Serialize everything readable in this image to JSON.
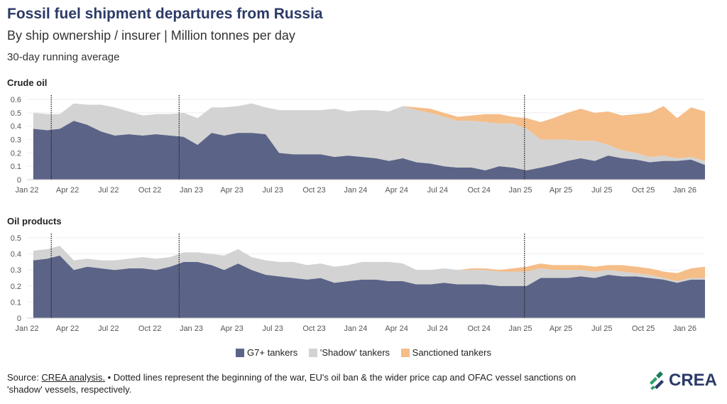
{
  "header": {
    "title": "Fossil fuel shipment departures from Russia",
    "subtitle": "By ship ownership / insurer | Million tonnes per day",
    "note": "30-day running average"
  },
  "colors": {
    "g7": "#5b6487",
    "shadow": "#d3d3d3",
    "sanctioned": "#f5bd88",
    "event_line": "#222222"
  },
  "legend": {
    "g7": "G7+ tankers",
    "shadow": "'Shadow' tankers",
    "sanctioned": "Sanctioned tankers"
  },
  "footer": {
    "source_label": "Source: ",
    "source_link": "CREA analysis.",
    "text": " • Dotted lines represent the beginning of the war, EU's oil ban & the wider price cap and OFAC vessel sanctions on 'shadow' vessels, respectively."
  },
  "logo": {
    "text": "CREA"
  },
  "chart_data": [
    {
      "type": "area",
      "stacked": true,
      "title": "Crude oil",
      "x_ticks": [
        "Jan 22",
        "Apr 22",
        "Jul 22",
        "Oct 22",
        "Jan 23",
        "Apr 23",
        "Jul 23",
        "Oct 23",
        "Jan 24",
        "Apr 24",
        "Jul 24",
        "Oct 24",
        "Jan 25",
        "Apr 25",
        "Jul 25",
        "Oct 25",
        "Jan 26"
      ],
      "y_ticks": [
        "0",
        "0.1",
        "0.2",
        "0.3",
        "0.4",
        "0.5",
        "0.6"
      ],
      "ylim": [
        0,
        0.6
      ],
      "x": [
        "2022-01",
        "2022-02",
        "2022-03",
        "2022-04",
        "2022-05",
        "2022-06",
        "2022-07",
        "2022-08",
        "2022-09",
        "2022-10",
        "2022-11",
        "2022-12",
        "2023-01",
        "2023-02",
        "2023-03",
        "2023-04",
        "2023-05",
        "2023-06",
        "2023-07",
        "2023-08",
        "2023-09",
        "2023-10",
        "2023-11",
        "2023-12",
        "2024-01",
        "2024-02",
        "2024-03",
        "2024-04",
        "2024-05",
        "2024-06",
        "2024-07",
        "2024-08",
        "2024-09",
        "2024-10",
        "2024-11",
        "2024-12",
        "2025-01",
        "2025-02",
        "2025-03",
        "2025-04",
        "2025-05",
        "2025-06",
        "2025-07",
        "2025-08",
        "2025-09",
        "2025-10",
        "2025-11",
        "2025-12",
        "2026-01",
        "2026-02"
      ],
      "series": [
        {
          "name": "G7+ tankers",
          "values": [
            0.38,
            0.37,
            0.38,
            0.44,
            0.41,
            0.36,
            0.33,
            0.34,
            0.33,
            0.34,
            0.33,
            0.32,
            0.26,
            0.35,
            0.33,
            0.35,
            0.35,
            0.34,
            0.2,
            0.19,
            0.19,
            0.19,
            0.17,
            0.18,
            0.17,
            0.16,
            0.14,
            0.16,
            0.13,
            0.12,
            0.1,
            0.09,
            0.09,
            0.07,
            0.1,
            0.09,
            0.07,
            0.09,
            0.11,
            0.14,
            0.16,
            0.14,
            0.18,
            0.16,
            0.15,
            0.13,
            0.14,
            0.14,
            0.15,
            0.11
          ]
        },
        {
          "name": "'Shadow' tankers",
          "values": [
            0.12,
            0.12,
            0.11,
            0.13,
            0.15,
            0.2,
            0.21,
            0.17,
            0.15,
            0.15,
            0.16,
            0.18,
            0.2,
            0.19,
            0.21,
            0.2,
            0.22,
            0.2,
            0.32,
            0.33,
            0.33,
            0.33,
            0.36,
            0.33,
            0.35,
            0.36,
            0.37,
            0.39,
            0.39,
            0.38,
            0.37,
            0.35,
            0.35,
            0.36,
            0.32,
            0.33,
            0.31,
            0.21,
            0.19,
            0.16,
            0.13,
            0.15,
            0.08,
            0.06,
            0.05,
            0.04,
            0.04,
            0.02,
            0.02,
            0.03
          ]
        },
        {
          "name": "Sanctioned tankers",
          "values": [
            0,
            0,
            0,
            0,
            0,
            0,
            0,
            0,
            0,
            0,
            0,
            0,
            0,
            0,
            0,
            0,
            0,
            0,
            0,
            0,
            0,
            0,
            0,
            0,
            0,
            0,
            0,
            0,
            0.02,
            0.03,
            0.03,
            0.03,
            0.04,
            0.06,
            0.07,
            0.05,
            0.08,
            0.13,
            0.16,
            0.2,
            0.24,
            0.21,
            0.25,
            0.26,
            0.29,
            0.33,
            0.37,
            0.3,
            0.37,
            0.37
          ]
        }
      ],
      "event_lines": [
        "2022-02-24",
        "2022-12-05",
        "2025-01-10"
      ]
    },
    {
      "type": "area",
      "stacked": true,
      "title": "Oil products",
      "x_ticks": [
        "Jan 22",
        "Apr 22",
        "Jul 22",
        "Oct 22",
        "Jan 23",
        "Apr 23",
        "Jul 23",
        "Oct 23",
        "Jan 24",
        "Apr 24",
        "Jul 24",
        "Oct 24",
        "Jan 25",
        "Apr 25",
        "Jul 25",
        "Oct 25",
        "Jan 26"
      ],
      "y_ticks": [
        "0",
        "0.1",
        "0.2",
        "0.3",
        "0.4",
        "0.5"
      ],
      "ylim": [
        0,
        0.5
      ],
      "x": [
        "2022-01",
        "2022-02",
        "2022-03",
        "2022-04",
        "2022-05",
        "2022-06",
        "2022-07",
        "2022-08",
        "2022-09",
        "2022-10",
        "2022-11",
        "2022-12",
        "2023-01",
        "2023-02",
        "2023-03",
        "2023-04",
        "2023-05",
        "2023-06",
        "2023-07",
        "2023-08",
        "2023-09",
        "2023-10",
        "2023-11",
        "2023-12",
        "2024-01",
        "2024-02",
        "2024-03",
        "2024-04",
        "2024-05",
        "2024-06",
        "2024-07",
        "2024-08",
        "2024-09",
        "2024-10",
        "2024-11",
        "2024-12",
        "2025-01",
        "2025-02",
        "2025-03",
        "2025-04",
        "2025-05",
        "2025-06",
        "2025-07",
        "2025-08",
        "2025-09",
        "2025-10",
        "2025-11",
        "2025-12",
        "2026-01",
        "2026-02"
      ],
      "series": [
        {
          "name": "G7+ tankers",
          "values": [
            0.36,
            0.37,
            0.39,
            0.3,
            0.32,
            0.31,
            0.3,
            0.31,
            0.31,
            0.3,
            0.32,
            0.35,
            0.35,
            0.33,
            0.3,
            0.34,
            0.3,
            0.27,
            0.26,
            0.25,
            0.24,
            0.25,
            0.22,
            0.23,
            0.24,
            0.24,
            0.23,
            0.23,
            0.21,
            0.21,
            0.22,
            0.21,
            0.21,
            0.21,
            0.2,
            0.2,
            0.2,
            0.25,
            0.25,
            0.25,
            0.26,
            0.25,
            0.27,
            0.26,
            0.26,
            0.25,
            0.24,
            0.22,
            0.24,
            0.24
          ]
        },
        {
          "name": "'Shadow' tankers",
          "values": [
            0.06,
            0.06,
            0.06,
            0.06,
            0.05,
            0.05,
            0.06,
            0.06,
            0.07,
            0.07,
            0.06,
            0.06,
            0.06,
            0.07,
            0.09,
            0.09,
            0.08,
            0.09,
            0.09,
            0.1,
            0.09,
            0.09,
            0.1,
            0.1,
            0.11,
            0.11,
            0.12,
            0.11,
            0.09,
            0.09,
            0.09,
            0.09,
            0.09,
            0.09,
            0.09,
            0.09,
            0.09,
            0.06,
            0.05,
            0.05,
            0.04,
            0.04,
            0.03,
            0.03,
            0.02,
            0.02,
            0.01,
            0.01,
            0.01,
            0.01
          ]
        },
        {
          "name": "Sanctioned tankers",
          "values": [
            0,
            0,
            0,
            0,
            0,
            0,
            0,
            0,
            0,
            0,
            0,
            0,
            0,
            0,
            0,
            0,
            0,
            0,
            0,
            0,
            0,
            0,
            0,
            0,
            0,
            0,
            0,
            0,
            0,
            0,
            0,
            0,
            0.01,
            0.01,
            0.01,
            0.02,
            0.03,
            0.03,
            0.03,
            0.03,
            0.03,
            0.03,
            0.03,
            0.04,
            0.04,
            0.04,
            0.04,
            0.05,
            0.06,
            0.07
          ]
        }
      ],
      "event_lines": [
        "2022-02-24",
        "2022-12-05",
        "2025-01-10"
      ]
    }
  ]
}
